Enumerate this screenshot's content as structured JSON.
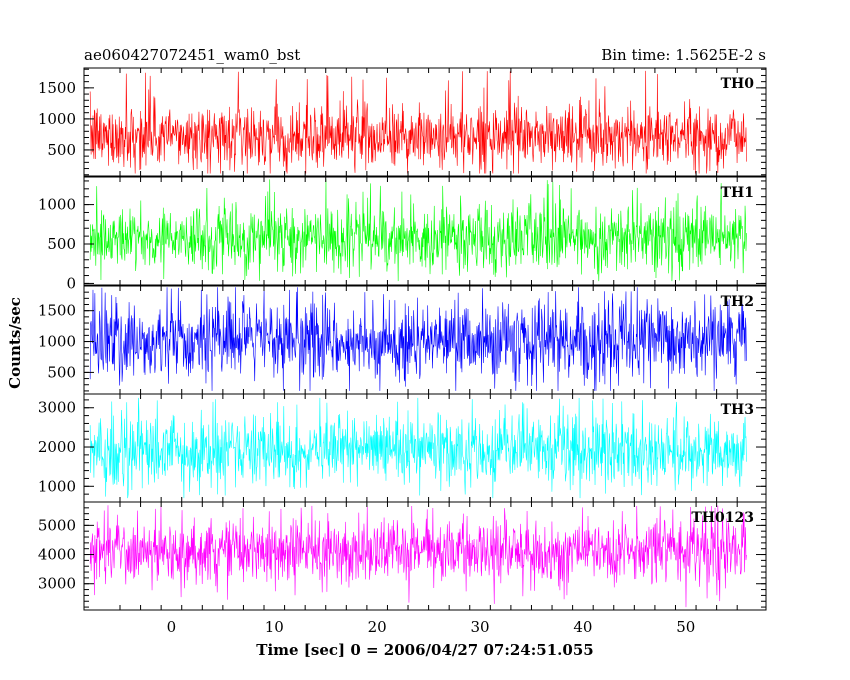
{
  "chart_data": {
    "type": "line",
    "title_left": "ae060427072451_wam0_bst",
    "title_right": "Bin time: 1.5625E-2 s",
    "xlabel": "Time [sec] 0 = 2006/04/27 07:24:51.055",
    "ylabel": "Counts/sec",
    "xlim": [
      -8.5,
      57.8
    ],
    "x_data_range": [
      -7.9,
      55.9
    ],
    "xticks": [
      0,
      10,
      20,
      30,
      40,
      50
    ],
    "xtick_labels": [
      "0",
      "10",
      "20",
      "30",
      "40",
      "50"
    ],
    "panels": [
      {
        "label": "TH0",
        "color": "#ff0000",
        "ylim": [
          80,
          1820
        ],
        "yticks": [
          500,
          1000,
          1500
        ],
        "ytick_labels": [
          "500",
          "1000",
          "1500"
        ],
        "mean": 720,
        "sigma": 260,
        "peak_max": 1780,
        "min": 120
      },
      {
        "label": "TH1",
        "color": "#00ff00",
        "ylim": [
          -20,
          1350
        ],
        "yticks": [
          0,
          500,
          1000
        ],
        "ytick_labels": [
          "0",
          "500",
          "1000"
        ],
        "mean": 580,
        "sigma": 220,
        "peak_max": 1320,
        "min": 30
      },
      {
        "label": "TH2",
        "color": "#0000ff",
        "ylim": [
          150,
          1900
        ],
        "yticks": [
          500,
          1000,
          1500
        ],
        "ytick_labels": [
          "500",
          "1000",
          "1500"
        ],
        "mean": 1000,
        "sigma": 330,
        "peak_max": 1880,
        "min": 200
      },
      {
        "label": "TH3",
        "color": "#00ffff",
        "ylim": [
          600,
          3350
        ],
        "yticks": [
          1000,
          2000,
          3000
        ],
        "ytick_labels": [
          "1000",
          "2000",
          "3000"
        ],
        "mean": 1900,
        "sigma": 450,
        "peak_max": 3250,
        "min": 700
      },
      {
        "label": "TH0123",
        "color": "#ff00ff",
        "ylim": [
          2100,
          5800
        ],
        "yticks": [
          3000,
          4000,
          5000
        ],
        "ytick_labels": [
          "3000",
          "4000",
          "5000"
        ],
        "mean": 4100,
        "sigma": 560,
        "peak_max": 5700,
        "min": 2200
      }
    ]
  }
}
